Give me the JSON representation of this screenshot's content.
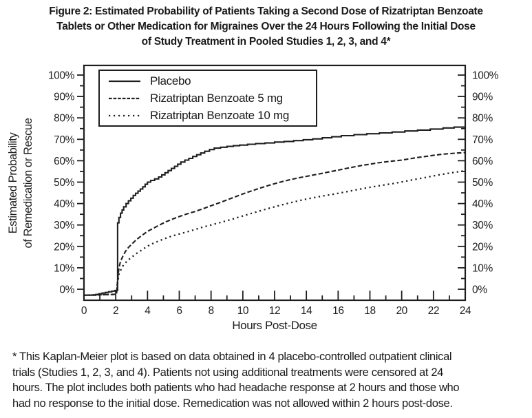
{
  "ink_color": "#1e1e1e",
  "background_color": "#ffffff",
  "figure_title": {
    "line1": "Figure 2: Estimated Probability of Patients Taking a Second Dose of Rizatriptan Benzoate",
    "line2": "Tablets or Other Medication for Migraines Over the 24 Hours Following the Initial Dose",
    "line3": "of Study Treatment in Pooled Studies 1, 2, 3, and 4*"
  },
  "footnote_lines": {
    "line1": "* This Kaplan-Meier plot is based on data obtained in 4 placebo-controlled outpatient clinical",
    "line2": "trials (Studies 1, 2, 3, and 4). Patients not using additional treatments were censored at 24",
    "line3": "hours. The plot includes both patients who had headache response at 2 hours and those who",
    "line4": "had no response to the initial dose. Remedication was not allowed within 2 hours post-dose."
  },
  "chart_data": {
    "type": "line",
    "subtype": "kaplan-meier-step",
    "title": "Figure 2: Estimated Probability of Patients Taking a Second Dose of Rizatriptan Benzoate Tablets or Other Medication for Migraines Over the 24 Hours Following the Initial Dose of Study Treatment in Pooled Studies 1, 2, 3, and 4*",
    "xlabel": "Hours Post-Dose",
    "ylabel_line1": "Estimated Probability",
    "ylabel_line2": "of Remedication or Rescue",
    "xlim": [
      0,
      24
    ],
    "ylim": [
      0,
      100
    ],
    "grid": false,
    "axes_mirrored_right": true,
    "x_tick_values": [
      0,
      2,
      4,
      6,
      8,
      10,
      12,
      14,
      16,
      18,
      20,
      22,
      24
    ],
    "x_tick_labels": [
      "0",
      "2",
      "4",
      "6",
      "8",
      "10",
      "12",
      "14",
      "16",
      "18",
      "20",
      "22",
      "24"
    ],
    "x_minor_ticks": [
      1,
      3,
      5,
      7,
      9,
      11,
      13,
      15,
      17,
      19,
      21,
      23
    ],
    "y_tick_values": [
      0,
      10,
      20,
      30,
      40,
      50,
      60,
      70,
      80,
      90,
      100
    ],
    "y_tick_labels": [
      "0%",
      "10%",
      "20%",
      "30%",
      "40%",
      "50%",
      "60%",
      "70%",
      "80%",
      "90%",
      "100%"
    ],
    "y_minor_ticks": [
      5,
      15,
      25,
      35,
      45,
      55,
      65,
      75,
      85,
      95
    ],
    "legend": {
      "position": "top-left-inside",
      "entries": [
        {
          "label": "Placebo",
          "line_style": "solid"
        },
        {
          "label": "Rizatriptan Benzoate 5 mg",
          "line_style": "dashed"
        },
        {
          "label": "Rizatriptan Benzoate 10 mg",
          "line_style": "dotted"
        }
      ]
    },
    "series": [
      {
        "name": "Placebo",
        "line_style": "solid",
        "interpolation": "step-after",
        "points": [
          [
            0,
            -2.8
          ],
          [
            0.55,
            -2.8
          ],
          [
            0.75,
            -2.4
          ],
          [
            0.95,
            -2.1
          ],
          [
            1.15,
            -1.8
          ],
          [
            1.35,
            -1.5
          ],
          [
            1.55,
            -1.2
          ],
          [
            1.75,
            -0.9
          ],
          [
            1.95,
            -0.6
          ],
          [
            2.1,
            -0.4
          ],
          [
            2.12,
            31
          ],
          [
            2.2,
            33.5
          ],
          [
            2.3,
            35.5
          ],
          [
            2.4,
            37
          ],
          [
            2.5,
            38.5
          ],
          [
            2.65,
            40
          ],
          [
            2.8,
            41.3
          ],
          [
            2.95,
            42.5
          ],
          [
            3.1,
            43.8
          ],
          [
            3.25,
            44.8
          ],
          [
            3.4,
            45.8
          ],
          [
            3.55,
            46.8
          ],
          [
            3.7,
            47.8
          ],
          [
            3.85,
            49
          ],
          [
            4,
            50
          ],
          [
            4.2,
            50.8
          ],
          [
            4.45,
            51.5
          ],
          [
            4.7,
            52.4
          ],
          [
            4.9,
            53.4
          ],
          [
            5.1,
            54.4
          ],
          [
            5.3,
            55.4
          ],
          [
            5.5,
            56.4
          ],
          [
            5.7,
            57.4
          ],
          [
            5.9,
            58.4
          ],
          [
            6.1,
            59.4
          ],
          [
            6.35,
            60.3
          ],
          [
            6.6,
            61.1
          ],
          [
            6.85,
            62
          ],
          [
            7.1,
            62.8
          ],
          [
            7.35,
            63.6
          ],
          [
            7.6,
            64.4
          ],
          [
            7.9,
            65.2
          ],
          [
            8.2,
            65.9
          ],
          [
            8.6,
            66.3
          ],
          [
            9,
            66.7
          ],
          [
            9.4,
            67
          ],
          [
            9.8,
            67.3
          ],
          [
            10.3,
            67.7
          ],
          [
            10.8,
            68
          ],
          [
            11.4,
            68.3
          ],
          [
            12,
            68.7
          ],
          [
            12.6,
            69
          ],
          [
            13.2,
            69.4
          ],
          [
            13.8,
            69.8
          ],
          [
            14.4,
            70.2
          ],
          [
            15,
            70.7
          ],
          [
            15.6,
            71.2
          ],
          [
            16.2,
            71.7
          ],
          [
            17,
            72.2
          ],
          [
            17.8,
            72.6
          ],
          [
            18.6,
            73
          ],
          [
            19.4,
            73.4
          ],
          [
            20.2,
            73.9
          ],
          [
            21,
            74.3
          ],
          [
            21.8,
            74.8
          ],
          [
            22.6,
            75.3
          ],
          [
            23.3,
            75.7
          ],
          [
            24,
            76
          ]
        ]
      },
      {
        "name": "Rizatriptan Benzoate 5 mg",
        "line_style": "dashed",
        "interpolation": "linear",
        "points": [
          [
            0,
            -2.8
          ],
          [
            1.9,
            -2.4
          ],
          [
            2.05,
            -2
          ],
          [
            2.1,
            3
          ],
          [
            2.2,
            10
          ],
          [
            2.3,
            13
          ],
          [
            2.45,
            15.5
          ],
          [
            2.6,
            17.5
          ],
          [
            2.8,
            19.5
          ],
          [
            3,
            21
          ],
          [
            3.25,
            22.8
          ],
          [
            3.5,
            24.3
          ],
          [
            3.75,
            25.7
          ],
          [
            4,
            27
          ],
          [
            4.3,
            28.2
          ],
          [
            4.6,
            29.4
          ],
          [
            4.9,
            30.5
          ],
          [
            5.2,
            31.6
          ],
          [
            5.5,
            32.5
          ],
          [
            5.8,
            33.4
          ],
          [
            6.1,
            34.2
          ],
          [
            6.5,
            35.2
          ],
          [
            7,
            36.3
          ],
          [
            7.5,
            37.6
          ],
          [
            8,
            39
          ],
          [
            8.5,
            40.3
          ],
          [
            9,
            41.7
          ],
          [
            9.5,
            43.1
          ],
          [
            10,
            44.5
          ],
          [
            10.5,
            45.8
          ],
          [
            11,
            47
          ],
          [
            11.5,
            48.2
          ],
          [
            12,
            49.3
          ],
          [
            12.5,
            50.3
          ],
          [
            13,
            51.2
          ],
          [
            13.5,
            52
          ],
          [
            14,
            52.7
          ],
          [
            14.5,
            53.4
          ],
          [
            15,
            54.1
          ],
          [
            15.5,
            54.9
          ],
          [
            16,
            55.6
          ],
          [
            16.5,
            56.4
          ],
          [
            17,
            57.1
          ],
          [
            17.5,
            57.8
          ],
          [
            18,
            58.4
          ],
          [
            18.5,
            59
          ],
          [
            19,
            59.5
          ],
          [
            19.5,
            59.9
          ],
          [
            20,
            60.3
          ],
          [
            20.5,
            60.9
          ],
          [
            21,
            61.5
          ],
          [
            21.5,
            62
          ],
          [
            22,
            62.5
          ],
          [
            22.5,
            63
          ],
          [
            23,
            63.3
          ],
          [
            23.5,
            63.6
          ],
          [
            24,
            63.8
          ]
        ]
      },
      {
        "name": "Rizatriptan Benzoate 10 mg",
        "line_style": "dotted",
        "interpolation": "linear",
        "points": [
          [
            0,
            -2.8
          ],
          [
            1.9,
            -2.4
          ],
          [
            2.05,
            -2
          ],
          [
            2.1,
            2
          ],
          [
            2.2,
            7
          ],
          [
            2.35,
            9.5
          ],
          [
            2.5,
            11.5
          ],
          [
            2.7,
            13
          ],
          [
            2.9,
            14.3
          ],
          [
            3.1,
            15.5
          ],
          [
            3.35,
            16.9
          ],
          [
            3.6,
            18.1
          ],
          [
            3.9,
            19.6
          ],
          [
            4.2,
            20.9
          ],
          [
            4.6,
            22.2
          ],
          [
            5,
            23.4
          ],
          [
            5.4,
            24.5
          ],
          [
            5.9,
            25.6
          ],
          [
            6.4,
            26.6
          ],
          [
            6.9,
            27.7
          ],
          [
            7.4,
            28.8
          ],
          [
            7.9,
            29.8
          ],
          [
            8.4,
            30.8
          ],
          [
            9,
            32
          ],
          [
            9.5,
            33.1
          ],
          [
            10,
            34.2
          ],
          [
            10.5,
            35.3
          ],
          [
            11,
            36.4
          ],
          [
            11.5,
            37.5
          ],
          [
            12,
            38.5
          ],
          [
            12.5,
            39.5
          ],
          [
            13,
            40.4
          ],
          [
            13.5,
            41.3
          ],
          [
            14,
            42.1
          ],
          [
            14.5,
            42.8
          ],
          [
            15,
            43.5
          ],
          [
            15.5,
            44.1
          ],
          [
            16,
            44.8
          ],
          [
            16.5,
            45.5
          ],
          [
            17,
            46.2
          ],
          [
            17.5,
            46.9
          ],
          [
            18,
            47.6
          ],
          [
            18.5,
            48.2
          ],
          [
            19,
            48.8
          ],
          [
            19.5,
            49.4
          ],
          [
            20,
            50.1
          ],
          [
            20.5,
            50.8
          ],
          [
            21,
            51.5
          ],
          [
            21.5,
            52.2
          ],
          [
            22,
            52.9
          ],
          [
            22.5,
            53.6
          ],
          [
            23,
            54.2
          ],
          [
            23.5,
            54.8
          ],
          [
            24,
            55.3
          ]
        ]
      }
    ]
  }
}
